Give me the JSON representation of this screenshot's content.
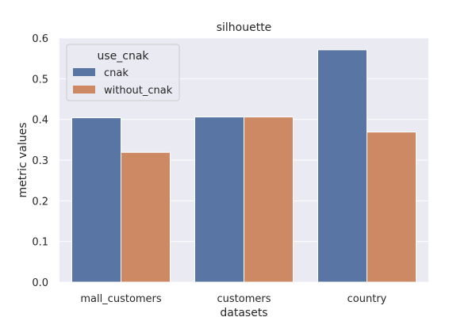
{
  "chart_data": {
    "type": "bar",
    "title": "silhouette",
    "xlabel": "datasets",
    "ylabel": "metric values",
    "categories": [
      "mall_customers",
      "customers",
      "country"
    ],
    "series": [
      {
        "name": "cnak",
        "values": [
          0.404,
          0.406,
          0.571
        ],
        "color": "#5875a4"
      },
      {
        "name": "without_cnak",
        "values": [
          0.319,
          0.406,
          0.369
        ],
        "color": "#cc8963"
      }
    ],
    "ylim": [
      0,
      0.6
    ],
    "yticks": [
      "0.0",
      "0.1",
      "0.2",
      "0.3",
      "0.4",
      "0.5",
      "0.6"
    ],
    "grid": true,
    "legend": {
      "title": "use_cnak",
      "placement": "top-left"
    },
    "background_color": "#eaeaf2"
  }
}
